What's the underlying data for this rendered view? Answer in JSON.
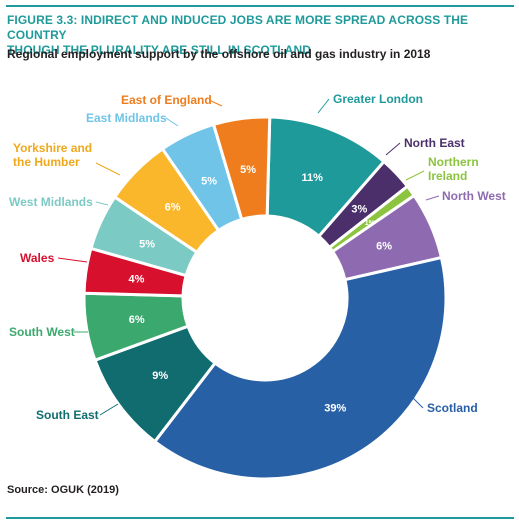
{
  "figure": {
    "title_lines": [
      "FIGURE 3.3: INDIRECT AND INDUCED JOBS ARE MORE SPREAD ACROSS THE COUNTRY",
      "THOUGH THE PLURALITY ARE STILL IN SCOTLAND"
    ],
    "subtitle": "Regional employment support by the offshore oil and gas industry in 2018",
    "source": "Source: OGUK (2019)"
  },
  "chart_data": {
    "type": "pie",
    "style": "donut",
    "title": "Regional employment support by the offshore oil and gas industry in 2018",
    "unit": "%",
    "slices": [
      {
        "label": "Greater London",
        "value": 11,
        "value_label": "11%",
        "color": "#1f9a9b",
        "label_color": "#1f9a9b"
      },
      {
        "label": "North East",
        "value": 3,
        "value_label": "3%",
        "color": "#4a2f6b",
        "label_color": "#4a2f6b"
      },
      {
        "label": "Northern Ireland",
        "value": 1,
        "value_label": "1%",
        "color": "#8cc43f",
        "label_color": "#8cc43f"
      },
      {
        "label": "North West",
        "value": 6,
        "value_label": "6%",
        "color": "#8e6bb0",
        "label_color": "#8e6bb0"
      },
      {
        "label": "Scotland",
        "value": 39,
        "value_label": "39%",
        "color": "#2860a6",
        "label_color": "#2860a6"
      },
      {
        "label": "South East",
        "value": 9,
        "value_label": "9%",
        "color": "#116c70",
        "label_color": "#116c70"
      },
      {
        "label": "South West",
        "value": 6,
        "value_label": "6%",
        "color": "#3ba96e",
        "label_color": "#3ba96e"
      },
      {
        "label": "Wales",
        "value": 4,
        "value_label": "4%",
        "color": "#d7102e",
        "label_color": "#d7102e"
      },
      {
        "label": "West Midlands",
        "value": 5,
        "value_label": "5%",
        "color": "#7ccac4",
        "label_color": "#7ccac4"
      },
      {
        "label": "Yorkshire and the Humber",
        "value": 6,
        "value_label": "6%",
        "color": "#fbb72c",
        "label_color": "#f0a81c"
      },
      {
        "label": "East Midlands",
        "value": 5,
        "value_label": "5%",
        "color": "#6fc4e8",
        "label_color": "#6fc4e8"
      },
      {
        "label": "East of England",
        "value": 5,
        "value_label": "5%",
        "color": "#ef7d1e",
        "label_color": "#ef7d1e"
      }
    ]
  }
}
